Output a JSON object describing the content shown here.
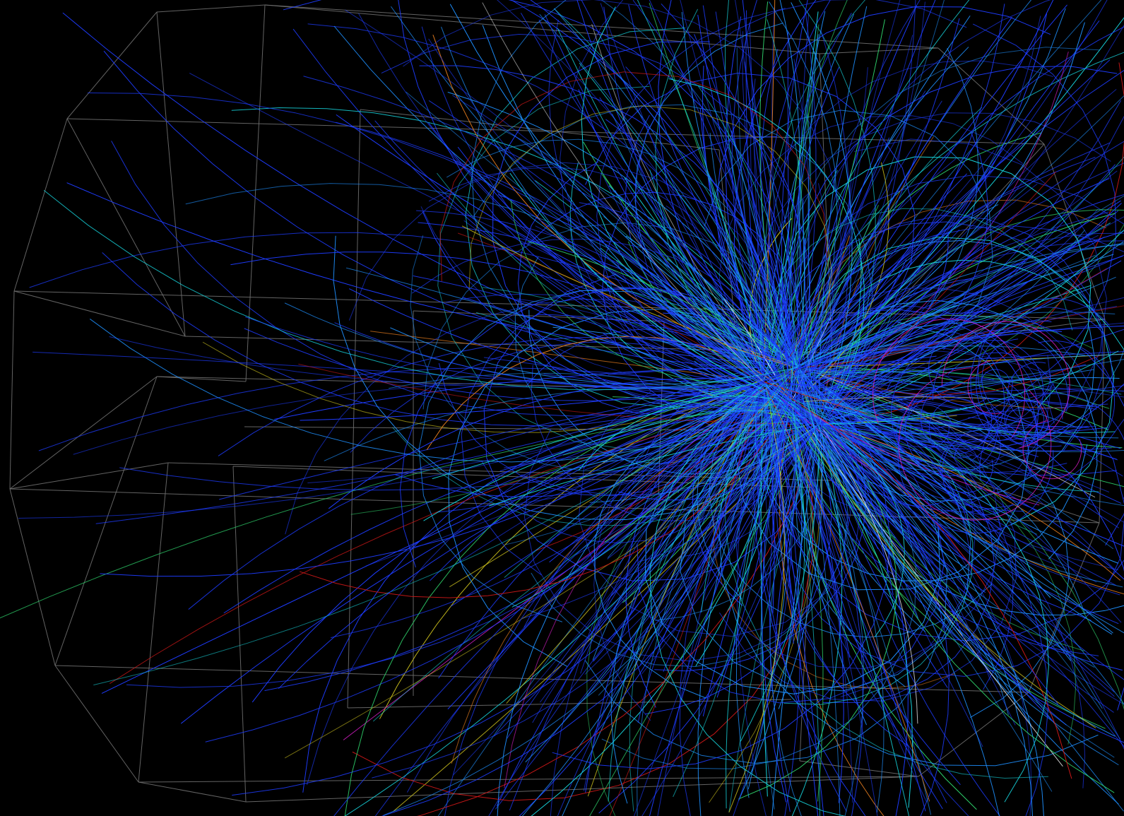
{
  "scene": {
    "type": "particle-collision-event-display",
    "background_color": "#000000",
    "detector_wireframe_color": "#6e6e6e",
    "track_colors": {
      "dominant": "#1e3cff",
      "secondary": "#1e90ff",
      "cyan": "#16d0d8",
      "green": "#2ed06a",
      "yellow": "#d4c81e",
      "orange": "#e07a1e",
      "red": "#d01818",
      "magenta": "#d81ec8",
      "white": "#e8e8e8"
    },
    "track_color_mix": {
      "dominant": 0.56,
      "secondary": 0.22,
      "cyan": 0.1,
      "green": 0.04,
      "yellow": 0.02,
      "orange": 0.02,
      "red": 0.02,
      "magenta": 0.01,
      "white": 0.01
    },
    "approx_track_count": 900
  }
}
